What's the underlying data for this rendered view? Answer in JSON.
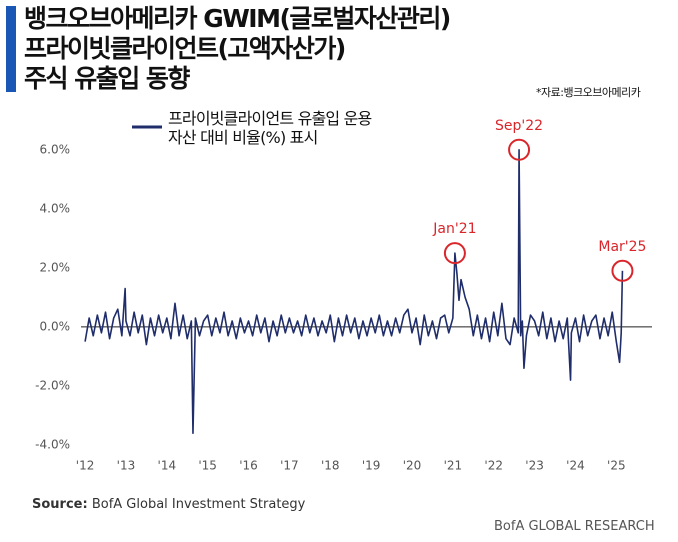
{
  "chart_data": {
    "type": "line",
    "title": [
      "뱅크오브아메리카 GWIM(글로벌자산관리)",
      "프라이빗클라이언트(고액자산가)",
      "주식 유출입 동향"
    ],
    "note": "*자료:뱅크오브아메리카",
    "source_label": "Source:",
    "source": "BofA Global Investment Strategy",
    "footer": "BofA GLOBAL RESEARCH",
    "xlim": [
      2011.9,
      2025.8
    ],
    "xticks": [
      {
        "value": 2012,
        "label": "'12"
      },
      {
        "value": 2013,
        "label": "'13"
      },
      {
        "value": 2014,
        "label": "'14"
      },
      {
        "value": 2015,
        "label": "'15"
      },
      {
        "value": 2016,
        "label": "'16"
      },
      {
        "value": 2017,
        "label": "'17"
      },
      {
        "value": 2018,
        "label": "'18"
      },
      {
        "value": 2019,
        "label": "'19"
      },
      {
        "value": 2020,
        "label": "'20"
      },
      {
        "value": 2021,
        "label": "'21"
      },
      {
        "value": 2022,
        "label": "'22"
      },
      {
        "value": 2023,
        "label": "'23"
      },
      {
        "value": 2024,
        "label": "'24"
      },
      {
        "value": 2025,
        "label": "'25"
      }
    ],
    "ylim": [
      -4,
      6.5
    ],
    "yticks": [
      {
        "value": -4,
        "label": "-4.0%"
      },
      {
        "value": -2,
        "label": "-2.0%"
      },
      {
        "value": 0,
        "label": "0.0%"
      },
      {
        "value": 2,
        "label": "2.0%"
      },
      {
        "value": 4,
        "label": "4.0%"
      },
      {
        "value": 6,
        "label": "6.0%"
      }
    ],
    "x": [
      2012.0,
      2012.1,
      2012.2,
      2012.3,
      2012.4,
      2012.5,
      2012.6,
      2012.7,
      2012.8,
      2012.9,
      2012.98,
      2013.0,
      2013.1,
      2013.2,
      2013.3,
      2013.4,
      2013.5,
      2013.6,
      2013.7,
      2013.8,
      2013.9,
      2014.0,
      2014.1,
      2014.2,
      2014.3,
      2014.4,
      2014.5,
      2014.6,
      2014.64,
      2014.7,
      2014.8,
      2014.9,
      2015.0,
      2015.1,
      2015.2,
      2015.3,
      2015.4,
      2015.5,
      2015.6,
      2015.7,
      2015.8,
      2015.9,
      2016.0,
      2016.1,
      2016.2,
      2016.3,
      2016.4,
      2016.5,
      2016.6,
      2016.7,
      2016.8,
      2016.9,
      2017.0,
      2017.1,
      2017.2,
      2017.3,
      2017.4,
      2017.5,
      2017.6,
      2017.7,
      2017.8,
      2017.9,
      2018.0,
      2018.1,
      2018.2,
      2018.3,
      2018.4,
      2018.5,
      2018.6,
      2018.7,
      2018.8,
      2018.9,
      2019.0,
      2019.1,
      2019.2,
      2019.3,
      2019.4,
      2019.5,
      2019.6,
      2019.7,
      2019.8,
      2019.9,
      2020.0,
      2020.1,
      2020.2,
      2020.3,
      2020.4,
      2020.5,
      2020.6,
      2020.7,
      2020.8,
      2020.9,
      2021.0,
      2021.05,
      2021.1,
      2021.15,
      2021.2,
      2021.3,
      2021.4,
      2021.5,
      2021.6,
      2021.7,
      2021.8,
      2021.9,
      2022.0,
      2022.1,
      2022.2,
      2022.3,
      2022.4,
      2022.5,
      2022.6,
      2022.62,
      2022.66,
      2022.7,
      2022.74,
      2022.8,
      2022.9,
      2023.0,
      2023.1,
      2023.2,
      2023.3,
      2023.4,
      2023.5,
      2023.6,
      2023.7,
      2023.8,
      2023.88,
      2023.9,
      2024.0,
      2024.1,
      2024.2,
      2024.3,
      2024.4,
      2024.5,
      2024.6,
      2024.7,
      2024.8,
      2024.9,
      2025.0,
      2025.08,
      2025.12,
      2025.15
    ],
    "series": [
      {
        "name": "프라이빗클라이언트 유출입 운용자산 대비 비율(%) 표시",
        "color": "#1f2d6b",
        "values": [
          -0.5,
          0.3,
          -0.3,
          0.4,
          -0.2,
          0.5,
          -0.4,
          0.3,
          0.6,
          -0.3,
          1.3,
          0.2,
          -0.3,
          0.5,
          -0.2,
          0.4,
          -0.6,
          0.3,
          -0.3,
          0.4,
          -0.2,
          0.3,
          -0.4,
          0.8,
          -0.3,
          0.4,
          -0.4,
          0.2,
          -3.6,
          0.3,
          -0.3,
          0.2,
          0.4,
          -0.3,
          0.3,
          -0.2,
          0.5,
          -0.3,
          0.2,
          -0.4,
          0.3,
          -0.2,
          0.2,
          -0.3,
          0.4,
          -0.2,
          0.3,
          -0.5,
          0.2,
          -0.3,
          0.4,
          -0.2,
          0.3,
          -0.2,
          0.2,
          -0.3,
          0.4,
          -0.2,
          0.3,
          -0.3,
          0.2,
          -0.2,
          0.4,
          -0.5,
          0.3,
          -0.3,
          0.4,
          -0.2,
          0.3,
          -0.4,
          0.2,
          -0.3,
          0.3,
          -0.2,
          0.4,
          -0.3,
          0.2,
          -0.3,
          0.3,
          -0.2,
          0.4,
          0.6,
          -0.2,
          0.3,
          -0.6,
          0.4,
          -0.3,
          0.2,
          -0.4,
          0.3,
          0.4,
          -0.2,
          0.3,
          2.5,
          1.8,
          0.9,
          1.6,
          1.0,
          0.6,
          -0.3,
          0.4,
          -0.4,
          0.3,
          -0.5,
          0.5,
          -0.3,
          0.8,
          -0.4,
          -0.6,
          0.3,
          -0.2,
          6.0,
          -0.3,
          0.2,
          -1.4,
          -0.3,
          0.4,
          0.2,
          -0.3,
          0.5,
          -0.4,
          0.3,
          -0.5,
          0.2,
          -0.4,
          0.3,
          -1.8,
          -0.2,
          0.3,
          -0.5,
          0.4,
          -0.3,
          0.2,
          0.4,
          -0.4,
          0.3,
          -0.3,
          0.5,
          -0.5,
          -1.2,
          -0.2,
          1.9
        ]
      }
    ],
    "annotations": [
      {
        "label": "Jan'21",
        "x": 2021.05,
        "y": 2.5
      },
      {
        "label": "Sep'22",
        "x": 2022.62,
        "y": 6.0
      },
      {
        "label": "Mar'25",
        "x": 2025.15,
        "y": 1.9
      }
    ],
    "annotation_color": "#d9262b"
  }
}
